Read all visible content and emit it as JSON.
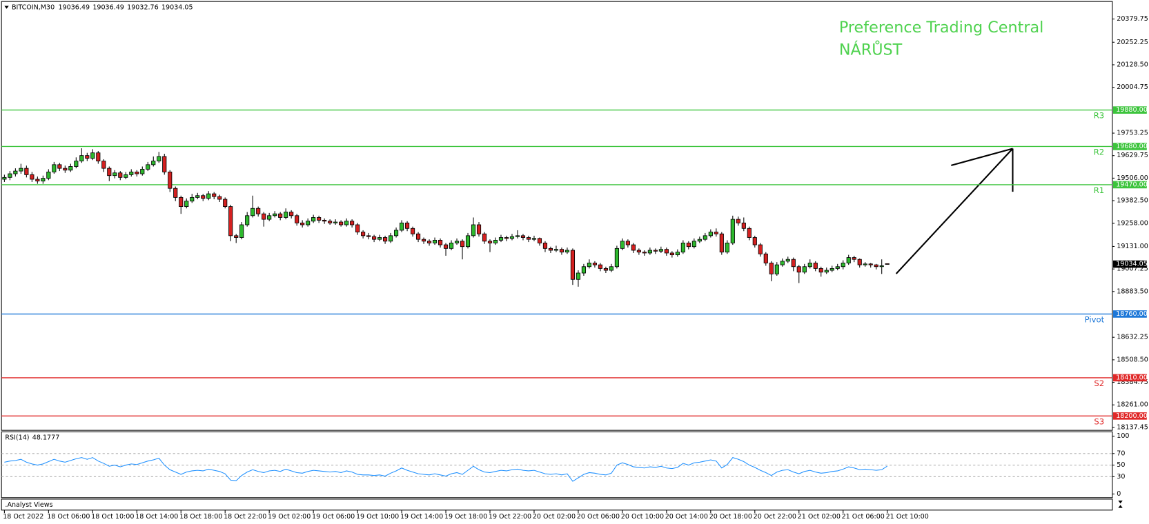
{
  "chart_data": [
    {
      "type": "candlestick",
      "symbol": "BITCOIN,M30",
      "annotations": [
        "Preference Trading Central",
        "NÁRŮST"
      ],
      "up_color": "#2db82d",
      "down_color": "#d42020",
      "ylim": [
        18121.35,
        20476.2
      ],
      "yticks": [
        20379.75,
        20252.25,
        {
          "value": 20128.5,
          "label": "20128.50"
        },
        20004.75,
        19753.25,
        19629.75,
        {
          "value": 19506,
          "label": "19506.00"
        },
        {
          "value": 19382.5,
          "label": "19382.50"
        },
        {
          "value": 19258,
          "label": "19258.00"
        },
        {
          "value": 19131,
          "label": "19131.00"
        },
        19007.25,
        {
          "value": 18883.5,
          "label": "18883.50"
        },
        18632.25,
        {
          "value": 18508.5,
          "label": "18508.50"
        },
        18384.75,
        {
          "value": 18261,
          "label": "18261.00"
        },
        18137.45
      ],
      "xticks": [
        {
          "value": 0,
          "label": "18 Oct 2022"
        },
        {
          "value": 8,
          "label": "18 Oct 06:00"
        },
        {
          "value": 16,
          "label": "18 Oct 10:00"
        },
        {
          "value": 24,
          "label": "18 Oct 14:00"
        },
        {
          "value": 32,
          "label": "18 Oct 18:00"
        },
        {
          "value": 40,
          "label": "18 Oct 22:00"
        },
        {
          "value": 48,
          "label": "19 Oct 02:00"
        },
        {
          "value": 56,
          "label": "19 Oct 06:00"
        },
        {
          "value": 64,
          "label": "19 Oct 10:00"
        },
        {
          "value": 72,
          "label": "19 Oct 14:00"
        },
        {
          "value": 80,
          "label": "19 Oct 18:00"
        },
        {
          "value": 88,
          "label": "19 Oct 22:00"
        },
        {
          "value": 96,
          "label": "20 Oct 02:00"
        },
        {
          "value": 104,
          "label": "20 Oct 06:00"
        },
        {
          "value": 112,
          "label": "20 Oct 10:00"
        },
        {
          "value": 120,
          "label": "20 Oct 14:00"
        },
        {
          "value": 128,
          "label": "20 Oct 18:00"
        },
        {
          "value": 136,
          "label": "20 Oct 22:00"
        },
        {
          "value": 144,
          "label": "21 Oct 02:00"
        },
        {
          "value": 152,
          "label": "21 Oct 06:00"
        },
        {
          "value": 160,
          "label": "21 Oct 10:00"
        }
      ],
      "levels": [
        {
          "name": "R3",
          "value": {
            "value": 19880,
            "label": "19880.00"
          },
          "color": "#3cc43c"
        },
        {
          "name": "R2",
          "value": {
            "value": 19680,
            "label": "19680.00"
          },
          "color": "#3cc43c"
        },
        {
          "name": "R1",
          "value": {
            "value": 19470,
            "label": "19470.00"
          },
          "color": "#3cc43c"
        },
        {
          "name": "Pivot",
          "value": {
            "value": 18760,
            "label": "18760.00"
          },
          "color": "#1e78d8"
        },
        {
          "name": "S2",
          "value": {
            "value": 18410,
            "label": "18410.00"
          },
          "color": "#e02828"
        },
        {
          "name": "S3",
          "value": {
            "value": 18200,
            "label": "18200.00"
          },
          "color": "#e02828"
        }
      ],
      "open": [
        19500,
        19510,
        19530,
        19545,
        19560,
        19525,
        19500,
        19490,
        19505,
        19540,
        19580,
        19560,
        19550,
        19570,
        19600,
        19630,
        19615,
        19645,
        19600,
        19560,
        19520,
        19535,
        19510,
        19525,
        19540,
        19530,
        19555,
        19580,
        19600,
        19625,
        19540,
        19450,
        19400,
        19350,
        19380,
        19400,
        19410,
        19395,
        19420,
        19405,
        19390,
        19350,
        19190,
        19180,
        19250,
        19300,
        19340,
        19310,
        19280,
        19300,
        19310,
        19290,
        19320,
        19300,
        19260,
        19250,
        19270,
        19290,
        19275,
        19270,
        19260,
        19265,
        19250,
        19270,
        19250,
        19210,
        19190,
        19185,
        19170,
        19180,
        19160,
        19190,
        19220,
        19260,
        19230,
        19200,
        19170,
        19160,
        19150,
        19165,
        19140,
        19120,
        19150,
        19160,
        19130,
        19190,
        19250,
        19200,
        19160,
        19150,
        19165,
        19180,
        19175,
        19185,
        19190,
        19180,
        19170,
        19175,
        19150,
        19120,
        19110,
        19115,
        19100,
        19110,
        18950,
        18985,
        19020,
        19040,
        19030,
        19010,
        19000,
        19020,
        19120,
        19160,
        19140,
        19110,
        19100,
        19095,
        19110,
        19105,
        19115,
        19095,
        19085,
        19100,
        19150,
        19130,
        19160,
        19170,
        19190,
        19210,
        19200,
        19100,
        19150,
        19280,
        19260,
        19230,
        19180,
        19140,
        19090,
        19040,
        18980,
        19030,
        19050,
        19060,
        19020,
        18990,
        19020,
        19040,
        19010,
        18990,
        19000,
        19010,
        19020,
        19040,
        19070,
        19060,
        19030,
        19035,
        19030,
        19020,
        19036.49
      ],
      "high": [
        19525,
        19545,
        19560,
        19585,
        19575,
        19540,
        19515,
        19520,
        19555,
        19595,
        19590,
        19575,
        19585,
        19620,
        19670,
        19645,
        19665,
        19655,
        19610,
        19570,
        19550,
        19545,
        19540,
        19555,
        19550,
        19570,
        19595,
        19625,
        19650,
        19640,
        19550,
        19460,
        19410,
        19395,
        19420,
        19425,
        19420,
        19435,
        19430,
        19415,
        19400,
        19360,
        19200,
        19265,
        19320,
        19410,
        19350,
        19320,
        19315,
        19325,
        19320,
        19340,
        19330,
        19310,
        19275,
        19285,
        19305,
        19300,
        19285,
        19280,
        19280,
        19275,
        19285,
        19280,
        19260,
        19220,
        19205,
        19195,
        19195,
        19190,
        19205,
        19235,
        19275,
        19270,
        19240,
        19210,
        19180,
        19170,
        19180,
        19175,
        19150,
        19165,
        19175,
        19170,
        19205,
        19290,
        19265,
        19210,
        19170,
        19180,
        19195,
        19190,
        19200,
        19220,
        19200,
        19190,
        19190,
        19180,
        19160,
        19130,
        19135,
        19125,
        19125,
        19120,
        19000,
        19035,
        19060,
        19050,
        19040,
        19020,
        19035,
        19135,
        19175,
        19170,
        19150,
        19120,
        19110,
        19125,
        19120,
        19130,
        19125,
        19105,
        19115,
        19165,
        19160,
        19175,
        19185,
        19205,
        19225,
        19230,
        19210,
        19165,
        19300,
        19295,
        19290,
        19240,
        19190,
        19150,
        19100,
        19050,
        19045,
        19065,
        19075,
        19070,
        19030,
        19035,
        19060,
        19050,
        19020,
        19015,
        19025,
        19035,
        19055,
        19085,
        19080,
        19065,
        19045,
        19040,
        19035,
        19060,
        19036.49
      ],
      "low": [
        19485,
        19495,
        19515,
        19530,
        19510,
        19485,
        19475,
        19475,
        19495,
        19530,
        19545,
        19535,
        19540,
        19560,
        19590,
        19600,
        19605,
        19585,
        19540,
        19490,
        19505,
        19495,
        19500,
        19515,
        19515,
        19520,
        19545,
        19570,
        19590,
        19525,
        19430,
        19380,
        19310,
        19340,
        19370,
        19390,
        19380,
        19385,
        19390,
        19375,
        19340,
        19160,
        19150,
        19170,
        19240,
        19290,
        19295,
        19240,
        19270,
        19290,
        19275,
        19280,
        19285,
        19245,
        19235,
        19240,
        19260,
        19260,
        19255,
        19250,
        19250,
        19240,
        19240,
        19235,
        19195,
        19175,
        19170,
        19155,
        19160,
        19145,
        19150,
        19180,
        19210,
        19215,
        19185,
        19155,
        19145,
        19135,
        19140,
        19125,
        19080,
        19110,
        19140,
        19060,
        19120,
        19180,
        19185,
        19145,
        19100,
        19140,
        19155,
        19160,
        19165,
        19175,
        19165,
        19155,
        19160,
        19135,
        19100,
        19095,
        19100,
        19085,
        19090,
        18920,
        18910,
        18970,
        19010,
        19015,
        18995,
        18985,
        18990,
        19010,
        19110,
        19125,
        19095,
        19085,
        19080,
        19085,
        19090,
        19095,
        19080,
        19070,
        19075,
        19090,
        19115,
        19120,
        19150,
        19160,
        19180,
        19185,
        19085,
        19090,
        19140,
        19245,
        19215,
        19165,
        19125,
        19075,
        19025,
        18940,
        18970,
        19020,
        19040,
        18995,
        18930,
        18980,
        19010,
        18995,
        18965,
        18980,
        18990,
        19000,
        19005,
        19030,
        19045,
        19015,
        19020,
        19015,
        19005,
        18980,
        19032.76
      ],
      "close": [
        19510,
        19530,
        19545,
        19560,
        19525,
        19500,
        19490,
        19505,
        19540,
        19580,
        19560,
        19550,
        19570,
        19600,
        19630,
        19615,
        19645,
        19600,
        19560,
        19520,
        19535,
        19510,
        19525,
        19540,
        19530,
        19555,
        19580,
        19600,
        19625,
        19540,
        19450,
        19400,
        19350,
        19380,
        19400,
        19410,
        19395,
        19420,
        19405,
        19390,
        19350,
        19190,
        19180,
        19250,
        19300,
        19340,
        19310,
        19280,
        19300,
        19310,
        19290,
        19320,
        19300,
        19260,
        19250,
        19270,
        19290,
        19275,
        19270,
        19260,
        19265,
        19250,
        19270,
        19250,
        19210,
        19190,
        19185,
        19170,
        19180,
        19160,
        19190,
        19220,
        19260,
        19230,
        19200,
        19170,
        19160,
        19150,
        19165,
        19140,
        19120,
        19150,
        19160,
        19130,
        19190,
        19250,
        19200,
        19160,
        19150,
        19165,
        19180,
        19175,
        19185,
        19190,
        19180,
        19170,
        19175,
        19150,
        19120,
        19110,
        19115,
        19100,
        19110,
        18950,
        18985,
        19020,
        19040,
        19030,
        19010,
        19000,
        19020,
        19120,
        19160,
        19140,
        19110,
        19100,
        19095,
        19110,
        19105,
        19115,
        19095,
        19085,
        19100,
        19150,
        19130,
        19160,
        19170,
        19190,
        19210,
        19200,
        19100,
        19150,
        19280,
        19260,
        19230,
        19180,
        19140,
        19090,
        19040,
        18980,
        19030,
        19050,
        19060,
        19020,
        18990,
        19020,
        19040,
        19010,
        18990,
        19000,
        19010,
        19020,
        19040,
        19070,
        19060,
        19030,
        19035,
        19030,
        19020,
        19025,
        19034.05
      ]
    },
    {
      "type": "line",
      "name": "RSI(14)",
      "color": "#1e90ff",
      "ylim": [
        -6.3,
        107.6
      ],
      "yticks": [
        0,
        30,
        50,
        70,
        100
      ],
      "levels": [
        30,
        50,
        70
      ],
      "values": [
        55,
        57,
        58,
        60,
        55,
        52,
        50,
        52,
        56,
        60,
        57,
        55,
        58,
        61,
        63,
        60,
        63,
        57,
        53,
        48,
        50,
        47,
        50,
        52,
        51,
        54,
        57,
        59,
        62,
        50,
        42,
        38,
        34,
        38,
        40,
        41,
        40,
        43,
        41,
        39,
        35,
        24,
        23,
        32,
        38,
        42,
        39,
        37,
        40,
        41,
        39,
        43,
        40,
        37,
        36,
        39,
        41,
        40,
        39,
        38,
        39,
        37,
        40,
        38,
        34,
        33,
        33,
        32,
        33,
        31,
        36,
        40,
        45,
        41,
        38,
        35,
        34,
        33,
        35,
        33,
        31,
        35,
        37,
        34,
        41,
        48,
        42,
        38,
        37,
        39,
        41,
        40,
        42,
        43,
        41,
        40,
        41,
        38,
        35,
        34,
        35,
        33,
        35,
        22,
        28,
        34,
        37,
        36,
        34,
        33,
        36,
        50,
        54,
        51,
        47,
        46,
        45,
        47,
        46,
        48,
        45,
        44,
        46,
        53,
        50,
        54,
        55,
        57,
        59,
        57,
        45,
        51,
        63,
        60,
        56,
        50,
        46,
        41,
        37,
        32,
        38,
        41,
        42,
        38,
        35,
        39,
        41,
        38,
        36,
        37,
        39,
        40,
        43,
        47,
        45,
        42,
        43,
        42,
        41,
        42,
        48.1777
      ]
    }
  ],
  "panel_label": ".Analyst Views"
}
